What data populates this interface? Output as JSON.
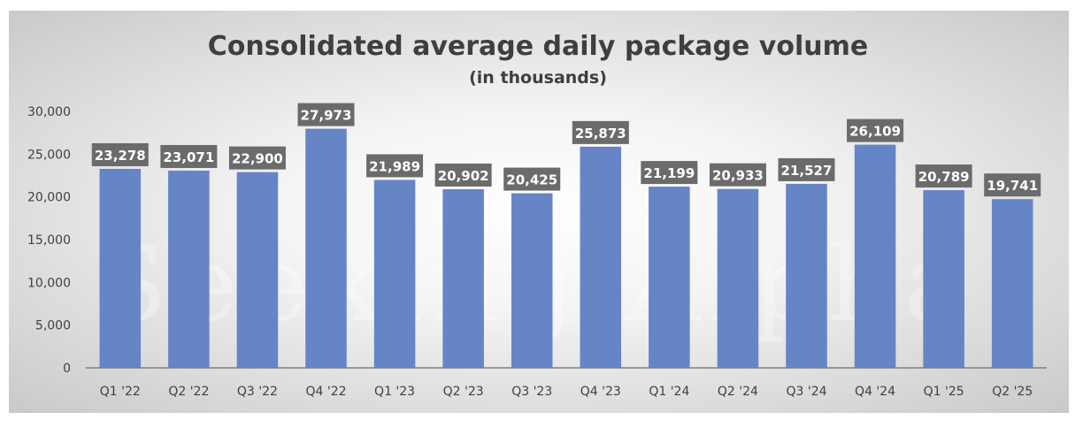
{
  "chart_data": {
    "type": "bar",
    "title": "Consolidated average daily package volume",
    "subtitle": "(in thousands)",
    "xlabel": "",
    "ylabel": "",
    "categories": [
      "Q1 '22",
      "Q2 '22",
      "Q3 '22",
      "Q4 '22",
      "Q1 '23",
      "Q2 '23",
      "Q3 '23",
      "Q4 '23",
      "Q1 '24",
      "Q2 '24",
      "Q3 '24",
      "Q4 '24",
      "Q1 '25",
      "Q2 '25"
    ],
    "values": [
      23278,
      23071,
      22900,
      27973,
      21989,
      20902,
      20425,
      25873,
      21199,
      20933,
      21527,
      26109,
      20789,
      19741
    ],
    "data_labels": [
      "23,278",
      "23,071",
      "22,900",
      "27,973",
      "21,989",
      "20,902",
      "20,425",
      "25,873",
      "21,199",
      "20,933",
      "21,527",
      "26,109",
      "20,789",
      "19,741"
    ],
    "ylim": [
      0,
      30000
    ],
    "yticks": [
      0,
      5000,
      10000,
      15000,
      20000,
      25000,
      30000
    ],
    "ytick_labels": [
      "0",
      "5,000",
      "10,000",
      "15,000",
      "20,000",
      "25,000",
      "30,000"
    ],
    "grid": false,
    "legend": "none",
    "colors": {
      "bar": "#6685c6",
      "label_box": "#6b6b6b",
      "axis": "#7f7f7f"
    }
  },
  "watermark": "Seeking Alpha"
}
